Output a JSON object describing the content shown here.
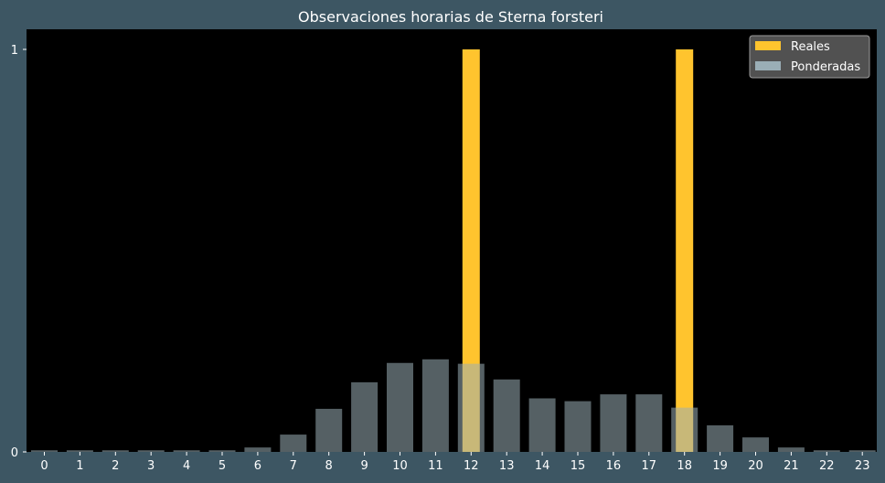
{
  "colors": {
    "background": "#3d5663",
    "plot_background": "#000000",
    "reales": "#ffc42e",
    "ponderadas": "#9aaeb6",
    "text": "#ffffff"
  },
  "chart_data": {
    "type": "bar",
    "title": "Observaciones horarias de Sterna forsteri",
    "xlabel": "",
    "ylabel": "",
    "categories": [
      "0",
      "1",
      "2",
      "3",
      "4",
      "5",
      "6",
      "7",
      "8",
      "9",
      "10",
      "11",
      "12",
      "13",
      "14",
      "15",
      "16",
      "17",
      "18",
      "19",
      "20",
      "21",
      "22",
      "23"
    ],
    "ylim": [
      0,
      1.05
    ],
    "yticks": [
      0,
      1
    ],
    "grid": false,
    "legend_position": "top-right",
    "series": [
      {
        "name": "Reales",
        "color": "#ffc42e",
        "values": [
          0,
          0,
          0,
          0,
          0,
          0,
          0,
          0,
          0,
          0,
          0,
          0,
          1,
          0,
          0,
          0,
          0,
          0,
          1,
          0,
          0,
          0,
          0,
          0
        ]
      },
      {
        "name": "Ponderadas",
        "color": "#9aaeb6",
        "opacity": 0.55,
        "values": [
          0.004,
          0.004,
          0.004,
          0.004,
          0.004,
          0.004,
          0.011,
          0.043,
          0.107,
          0.173,
          0.221,
          0.23,
          0.219,
          0.18,
          0.133,
          0.126,
          0.143,
          0.143,
          0.11,
          0.066,
          0.036,
          0.011,
          0.004,
          0.004
        ]
      }
    ]
  }
}
